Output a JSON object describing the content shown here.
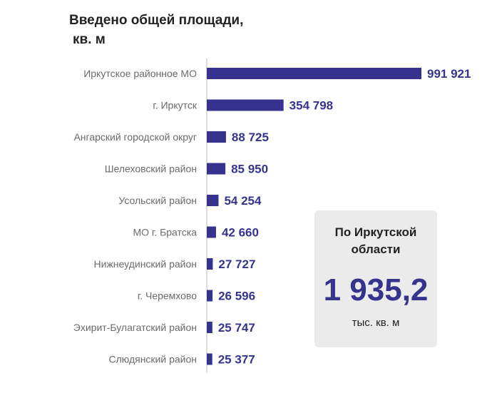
{
  "chart_data": {
    "type": "bar",
    "orientation": "horizontal",
    "title": "Введено общей площади,",
    "title_line2": "кв. м",
    "categories": [
      "Иркутское районное МО",
      "г. Иркутск",
      "Ангарский городской округ",
      "Шелеховский район",
      "Усольский район",
      "МО г. Братска",
      "Нижнеудинский район",
      "г. Черемхово",
      "Эхирит-Булагатский район",
      "Слюдянский район"
    ],
    "values": [
      991921,
      354798,
      88725,
      85950,
      54254,
      42660,
      27727,
      26596,
      25747,
      25377
    ],
    "value_labels": [
      "991 921",
      "354 798",
      "88 725",
      "85 950",
      "54 254",
      "42 660",
      "27 727",
      "26 596",
      "25 747",
      "25 377"
    ],
    "bar_color": "#36338f",
    "grid": false
  },
  "summary": {
    "heading": "По Иркутской области",
    "value": "1 935,2",
    "unit": "тыс. кв. м"
  }
}
